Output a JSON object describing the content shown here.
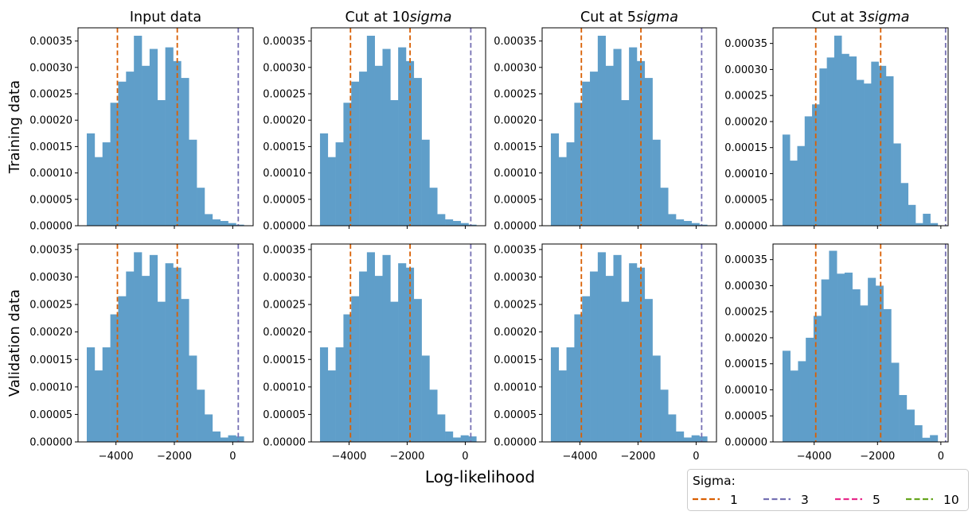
{
  "figure": {
    "xlabel": "Log-likelihood",
    "row_labels": [
      "Training data",
      "Validation data"
    ],
    "column_titles": [
      {
        "prefix": "Input data",
        "italic": ""
      },
      {
        "prefix": "Cut at 10",
        "italic": "sigma"
      },
      {
        "prefix": "Cut at 5",
        "italic": "sigma"
      },
      {
        "prefix": "Cut at 3",
        "italic": "sigma"
      }
    ]
  },
  "legend": {
    "title": "Sigma:",
    "entries": [
      {
        "label": "1",
        "color": "#d95f02"
      },
      {
        "label": "3",
        "color": "#7570b3"
      },
      {
        "label": "5",
        "color": "#e7298a"
      },
      {
        "label": "10",
        "color": "#66a61e"
      }
    ]
  },
  "colors": {
    "bar": "#5f9ec9",
    "sigma1": "#d95f02",
    "sigma3": "#7570b3"
  },
  "chart_data": [
    {
      "type": "bar",
      "row": "Training data",
      "column": "Input data",
      "xlim": [
        -5300,
        700
      ],
      "ylim": [
        0,
        0.000375
      ],
      "xticks": [
        -4000,
        -2000,
        0
      ],
      "yticks": [
        0,
        5e-05,
        0.0001,
        0.00015,
        0.0002,
        0.00025,
        0.0003,
        0.00035
      ],
      "bins_x_range": [
        -5000,
        380
      ],
      "values": [
        0.000175,
        0.00013,
        0.000158,
        0.000233,
        0.000273,
        0.000292,
        0.00036,
        0.000303,
        0.000335,
        0.000238,
        0.000338,
        0.000312,
        0.00028,
        0.000163,
        7.2e-05,
        2.2e-05,
        1.2e-05,
        9e-06,
        5e-06,
        2e-06
      ],
      "vlines": [
        {
          "sigma": "1",
          "x": -3950
        },
        {
          "sigma": "1",
          "x": -1900
        },
        {
          "sigma": "3",
          "x": 190
        }
      ]
    },
    {
      "type": "bar",
      "row": "Training data",
      "column": "Cut at 10sigma",
      "xlim": [
        -5300,
        700
      ],
      "ylim": [
        0,
        0.000375
      ],
      "xticks": [
        -4000,
        -2000,
        0
      ],
      "yticks": [
        0,
        5e-05,
        0.0001,
        0.00015,
        0.0002,
        0.00025,
        0.0003,
        0.00035
      ],
      "bins_x_range": [
        -5000,
        380
      ],
      "values": [
        0.000175,
        0.00013,
        0.000158,
        0.000233,
        0.000273,
        0.000292,
        0.00036,
        0.000303,
        0.000335,
        0.000238,
        0.000338,
        0.000312,
        0.00028,
        0.000163,
        7.2e-05,
        2.2e-05,
        1.2e-05,
        9e-06,
        5e-06,
        2e-06
      ],
      "vlines": [
        {
          "sigma": "1",
          "x": -3950
        },
        {
          "sigma": "1",
          "x": -1900
        },
        {
          "sigma": "3",
          "x": 190
        }
      ]
    },
    {
      "type": "bar",
      "row": "Training data",
      "column": "Cut at 5sigma",
      "xlim": [
        -5300,
        700
      ],
      "ylim": [
        0,
        0.000375
      ],
      "xticks": [
        -4000,
        -2000,
        0
      ],
      "yticks": [
        0,
        5e-05,
        0.0001,
        0.00015,
        0.0002,
        0.00025,
        0.0003,
        0.00035
      ],
      "bins_x_range": [
        -5000,
        380
      ],
      "values": [
        0.000175,
        0.00013,
        0.000158,
        0.000233,
        0.000273,
        0.000292,
        0.00036,
        0.000303,
        0.000335,
        0.000238,
        0.000338,
        0.000312,
        0.00028,
        0.000163,
        7.2e-05,
        2.2e-05,
        1.2e-05,
        9e-06,
        5e-06,
        2e-06
      ],
      "vlines": [
        {
          "sigma": "1",
          "x": -3950
        },
        {
          "sigma": "1",
          "x": -1900
        },
        {
          "sigma": "3",
          "x": 190
        }
      ]
    },
    {
      "type": "bar",
      "row": "Training data",
      "column": "Cut at 3sigma",
      "xlim": [
        -5300,
        230
      ],
      "ylim": [
        0,
        0.00038
      ],
      "xticks": [
        -4000,
        -2000,
        0
      ],
      "yticks": [
        0,
        5e-05,
        0.0001,
        0.00015,
        0.0002,
        0.00025,
        0.0003,
        0.00035
      ],
      "bins_x_range": [
        -5000,
        -100
      ],
      "values": [
        0.000175,
        0.000125,
        0.000153,
        0.00021,
        0.000233,
        0.000302,
        0.000323,
        0.000365,
        0.00033,
        0.000325,
        0.00028,
        0.000273,
        0.000315,
        0.000307,
        0.000287,
        0.000158,
        8.2e-05,
        4e-05,
        5e-06,
        2.3e-05,
        5e-06
      ],
      "vlines": [
        {
          "sigma": "1",
          "x": -3950
        },
        {
          "sigma": "1",
          "x": -1900
        },
        {
          "sigma": "3",
          "x": 150
        }
      ]
    },
    {
      "type": "bar",
      "row": "Validation data",
      "column": "Input data",
      "xlim": [
        -5300,
        700
      ],
      "ylim": [
        0,
        0.00036
      ],
      "xticks": [
        -4000,
        -2000,
        0
      ],
      "yticks": [
        0,
        5e-05,
        0.0001,
        0.00015,
        0.0002,
        0.00025,
        0.0003,
        0.00035
      ],
      "bins_x_range": [
        -5000,
        380
      ],
      "values": [
        0.000172,
        0.00013,
        0.000172,
        0.000232,
        0.000265,
        0.00031,
        0.000345,
        0.000302,
        0.00034,
        0.000255,
        0.000325,
        0.000317,
        0.00026,
        0.000157,
        9.5e-05,
        5e-05,
        1.9e-05,
        8e-06,
        1.2e-05,
        1e-05
      ],
      "vlines": [
        {
          "sigma": "1",
          "x": -3950
        },
        {
          "sigma": "1",
          "x": -1900
        },
        {
          "sigma": "3",
          "x": 190
        }
      ]
    },
    {
      "type": "bar",
      "row": "Validation data",
      "column": "Cut at 10sigma",
      "xlim": [
        -5300,
        700
      ],
      "ylim": [
        0,
        0.00036
      ],
      "xticks": [
        -4000,
        -2000,
        0
      ],
      "yticks": [
        0,
        5e-05,
        0.0001,
        0.00015,
        0.0002,
        0.00025,
        0.0003,
        0.00035
      ],
      "bins_x_range": [
        -5000,
        380
      ],
      "values": [
        0.000172,
        0.00013,
        0.000172,
        0.000232,
        0.000265,
        0.00031,
        0.000345,
        0.000302,
        0.00034,
        0.000255,
        0.000325,
        0.000317,
        0.00026,
        0.000157,
        9.5e-05,
        5e-05,
        1.9e-05,
        8e-06,
        1.2e-05,
        1e-05
      ],
      "vlines": [
        {
          "sigma": "1",
          "x": -3950
        },
        {
          "sigma": "1",
          "x": -1900
        },
        {
          "sigma": "3",
          "x": 190
        }
      ]
    },
    {
      "type": "bar",
      "row": "Validation data",
      "column": "Cut at 5sigma",
      "xlim": [
        -5300,
        700
      ],
      "ylim": [
        0,
        0.00036
      ],
      "xticks": [
        -4000,
        -2000,
        0
      ],
      "yticks": [
        0,
        5e-05,
        0.0001,
        0.00015,
        0.0002,
        0.00025,
        0.0003,
        0.00035
      ],
      "bins_x_range": [
        -5000,
        380
      ],
      "values": [
        0.000172,
        0.00013,
        0.000172,
        0.000232,
        0.000265,
        0.00031,
        0.000345,
        0.000302,
        0.00034,
        0.000255,
        0.000325,
        0.000317,
        0.00026,
        0.000157,
        9.5e-05,
        5e-05,
        1.9e-05,
        8e-06,
        1.2e-05,
        1e-05
      ],
      "vlines": [
        {
          "sigma": "1",
          "x": -3950
        },
        {
          "sigma": "1",
          "x": -1900
        },
        {
          "sigma": "3",
          "x": 190
        }
      ]
    },
    {
      "type": "bar",
      "row": "Validation data",
      "column": "Cut at 3sigma",
      "xlim": [
        -5300,
        230
      ],
      "ylim": [
        0,
        0.00038
      ],
      "xticks": [
        -4000,
        -2000,
        0
      ],
      "yticks": [
        0,
        5e-05,
        0.0001,
        0.00015,
        0.0002,
        0.00025,
        0.0003,
        0.00035
      ],
      "bins_x_range": [
        -5000,
        -100
      ],
      "values": [
        0.000175,
        0.000137,
        0.000155,
        0.0002,
        0.000242,
        0.000312,
        0.000367,
        0.000323,
        0.000325,
        0.000293,
        0.000262,
        0.000315,
        0.0003,
        0.000255,
        0.000152,
        9e-05,
        6.2e-05,
        3.2e-05,
        8e-06,
        1.3e-05
      ],
      "vlines": [
        {
          "sigma": "1",
          "x": -3950
        },
        {
          "sigma": "1",
          "x": -1900
        },
        {
          "sigma": "3",
          "x": 150
        }
      ]
    }
  ]
}
